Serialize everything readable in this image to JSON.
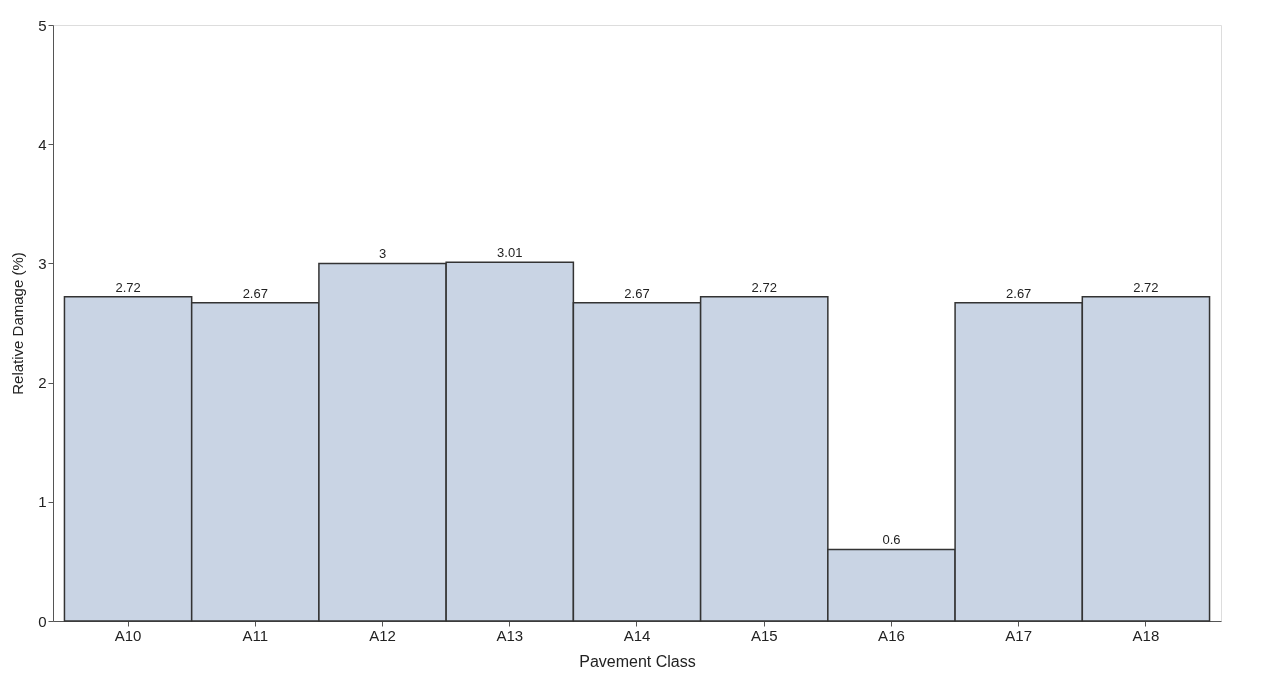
{
  "chart_data": {
    "type": "bar",
    "xlabel": "Pavement Class",
    "ylabel": "Relative Damage (%)",
    "categories": [
      "A10",
      "A11",
      "A12",
      "A13",
      "A14",
      "A15",
      "A16",
      "A17",
      "A18"
    ],
    "values": [
      2.72,
      2.67,
      3,
      3.01,
      2.67,
      2.72,
      0.6,
      2.67,
      2.72
    ],
    "color": "#c9d4e4",
    "ylim": [
      0,
      5
    ],
    "yticks": [
      0,
      1,
      2,
      3,
      4,
      5
    ],
    "grid": false,
    "data_labels": true
  }
}
